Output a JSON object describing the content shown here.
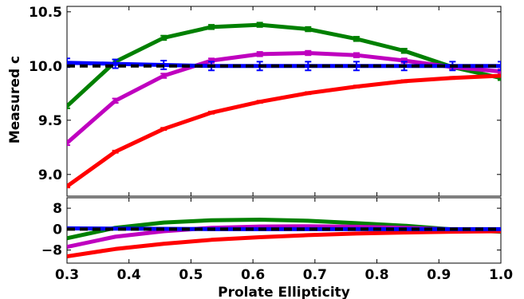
{
  "chart_data": [
    {
      "type": "line",
      "panel": "top",
      "xlabel": "",
      "ylabel": "Measured c",
      "xlim": [
        0.3,
        1.0
      ],
      "ylim": [
        8.8,
        10.55
      ],
      "grid": false,
      "x": [
        0.3,
        0.378,
        0.456,
        0.533,
        0.611,
        0.689,
        0.767,
        0.844,
        0.922,
        1.0
      ],
      "yticks": [
        "9.0",
        "9.5",
        "10.0",
        "10.5"
      ],
      "ytick_values": [
        9.0,
        9.5,
        10.0,
        10.5
      ],
      "reference_line": {
        "y": 10.0,
        "style": "dashed",
        "color": "#000000"
      },
      "series": [
        {
          "color": "#008000",
          "values": [
            9.63,
            10.04,
            10.26,
            10.36,
            10.38,
            10.34,
            10.25,
            10.14,
            9.99,
            9.89
          ],
          "errors": [
            0.02,
            0.02,
            0.02,
            0.02,
            0.02,
            0.02,
            0.02,
            0.02,
            0.02,
            0.02
          ]
        },
        {
          "color": "#bf00bf",
          "values": [
            9.29,
            9.68,
            9.91,
            10.05,
            10.11,
            10.12,
            10.1,
            10.05,
            9.99,
            9.95
          ],
          "errors": [
            0.02,
            0.02,
            0.02,
            0.02,
            0.02,
            0.02,
            0.02,
            0.02,
            0.02,
            0.02
          ]
        },
        {
          "color": "#ff0000",
          "values": [
            8.89,
            9.21,
            9.42,
            9.57,
            9.67,
            9.75,
            9.81,
            9.86,
            9.89,
            9.91
          ],
          "errors": [
            0.01,
            0.01,
            0.01,
            0.01,
            0.01,
            0.01,
            0.01,
            0.01,
            0.01,
            0.01
          ]
        },
        {
          "color": "#0000ff",
          "values": [
            10.03,
            10.02,
            10.01,
            10.0,
            10.0,
            10.0,
            10.0,
            10.0,
            10.0,
            10.0
          ],
          "errors": [
            0.04,
            0.04,
            0.04,
            0.04,
            0.04,
            0.04,
            0.04,
            0.04,
            0.04,
            0.04
          ]
        }
      ]
    },
    {
      "type": "line",
      "panel": "bottom",
      "xlabel": "Prolate Ellipticity",
      "ylabel": "",
      "xlim": [
        0.3,
        1.0
      ],
      "ylim": [
        -13,
        12
      ],
      "grid": false,
      "x": [
        0.3,
        0.378,
        0.456,
        0.533,
        0.611,
        0.689,
        0.767,
        0.844,
        0.922,
        1.0
      ],
      "xticks": [
        "0.3",
        "0.4",
        "0.5",
        "0.6",
        "0.7",
        "0.8",
        "0.9",
        "1.0"
      ],
      "xtick_values": [
        0.3,
        0.4,
        0.5,
        0.6,
        0.7,
        0.8,
        0.9,
        1.0
      ],
      "yticks": [
        "8",
        "0",
        "−8"
      ],
      "ytick_values": [
        8,
        0,
        -8
      ],
      "reference_line": {
        "y": 0,
        "style": "dashed",
        "color": "#000000"
      },
      "series": [
        {
          "color": "#008000",
          "values": [
            -3.5,
            0.5,
            2.5,
            3.4,
            3.6,
            3.2,
            2.3,
            1.3,
            -0.1,
            -1.0
          ]
        },
        {
          "color": "#bf00bf",
          "values": [
            -6.8,
            -2.9,
            -0.8,
            0.5,
            1.0,
            1.1,
            0.9,
            0.5,
            -0.1,
            -0.5
          ]
        },
        {
          "color": "#ff0000",
          "values": [
            -10.4,
            -7.6,
            -5.6,
            -4.1,
            -3.1,
            -2.3,
            -1.7,
            -1.3,
            -1.0,
            -0.8
          ]
        },
        {
          "color": "#0000ff",
          "values": [
            0.3,
            0.2,
            0.1,
            0.0,
            0.0,
            0.0,
            0.0,
            0.0,
            0.0,
            0.0
          ]
        }
      ]
    }
  ]
}
